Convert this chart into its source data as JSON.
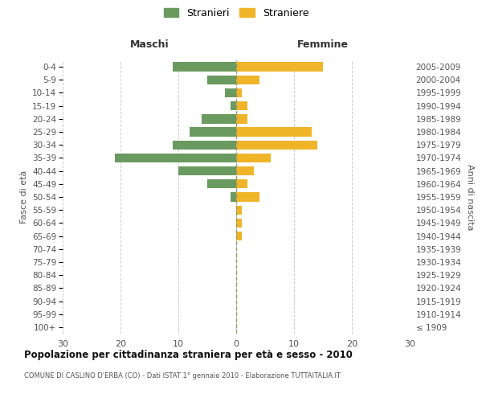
{
  "age_groups": [
    "100+",
    "95-99",
    "90-94",
    "85-89",
    "80-84",
    "75-79",
    "70-74",
    "65-69",
    "60-64",
    "55-59",
    "50-54",
    "45-49",
    "40-44",
    "35-39",
    "30-34",
    "25-29",
    "20-24",
    "15-19",
    "10-14",
    "5-9",
    "0-4"
  ],
  "birth_years": [
    "≤ 1909",
    "1910-1914",
    "1915-1919",
    "1920-1924",
    "1925-1929",
    "1930-1934",
    "1935-1939",
    "1940-1944",
    "1945-1949",
    "1950-1954",
    "1955-1959",
    "1960-1964",
    "1965-1969",
    "1970-1974",
    "1975-1979",
    "1980-1984",
    "1985-1989",
    "1990-1994",
    "1995-1999",
    "2000-2004",
    "2005-2009"
  ],
  "males": [
    0,
    0,
    0,
    0,
    0,
    0,
    0,
    0,
    0,
    0,
    1,
    5,
    10,
    21,
    11,
    8,
    6,
    1,
    2,
    5,
    11
  ],
  "females": [
    0,
    0,
    0,
    0,
    0,
    0,
    0,
    1,
    1,
    1,
    4,
    2,
    3,
    6,
    14,
    13,
    2,
    2,
    1,
    4,
    15
  ],
  "male_color": "#6a9a5f",
  "female_color": "#f0b429",
  "grid_color": "#cccccc",
  "title": "Popolazione per cittadinanza straniera per età e sesso - 2010",
  "subtitle": "COMUNE DI CASLINO D'ERBA (CO) - Dati ISTAT 1° gennaio 2010 - Elaborazione TUTTAITALIA.IT",
  "xlabel_left": "Maschi",
  "xlabel_right": "Femmine",
  "ylabel_left": "Fasce di età",
  "ylabel_right": "Anni di nascita",
  "legend_male": "Stranieri",
  "legend_female": "Straniere",
  "xlim": 30,
  "background_color": "#ffffff"
}
